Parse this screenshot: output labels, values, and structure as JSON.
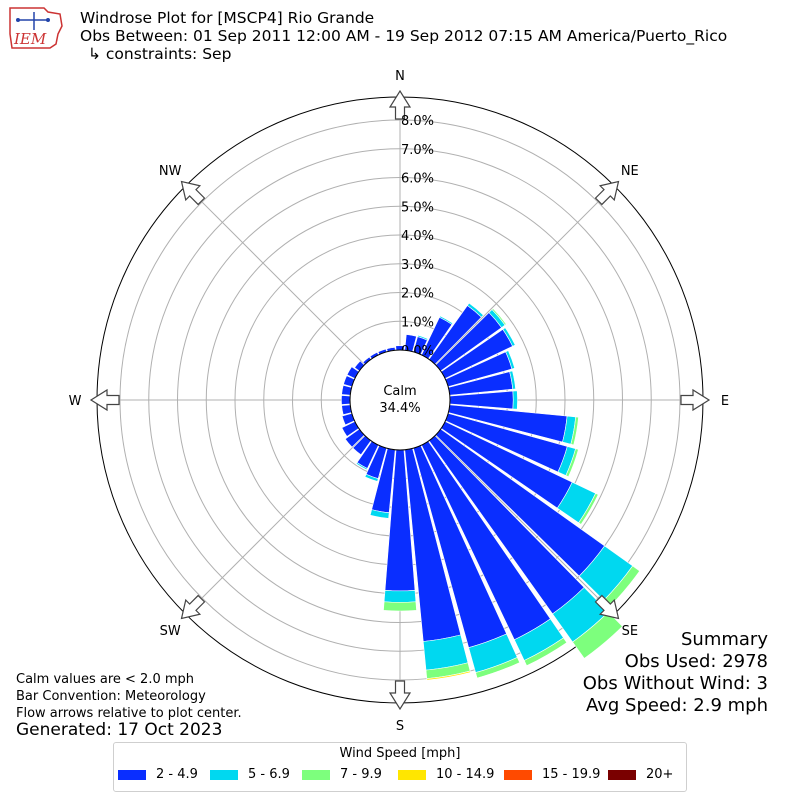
{
  "title": {
    "line1": "Windrose Plot for [MSCP4] Rio Grande",
    "line2": "Obs Between: 01 Sep 2011 12:00 AM - 19 Sep 2012 07:15 AM America/Puerto_Rico",
    "line3": "↳ constraints: Sep"
  },
  "logo": {
    "text": "IEM"
  },
  "summary": {
    "heading": "Summary",
    "obs_used": "Obs Used: 2978",
    "obs_without_wind": "Obs Without Wind: 3",
    "avg_speed": "Avg Speed: 2.9 mph"
  },
  "notes": {
    "calm_values": "Calm values are < 2.0 mph",
    "bar_convention": "Bar Convention: Meteorology",
    "flow_arrows": "Flow arrows relative to plot center.",
    "generated": "Generated: 17 Oct 2023"
  },
  "chart_data": {
    "type": "windrose",
    "calm": {
      "label": "Calm",
      "value": "34.4%"
    },
    "compass_labels": [
      "N",
      "NE",
      "E",
      "SE",
      "S",
      "SW",
      "W",
      "NW"
    ],
    "radial_ticks": [
      "0.0%",
      "1.0%",
      "2.0%",
      "3.0%",
      "4.0%",
      "5.0%",
      "6.0%",
      "7.0%",
      "8.0%"
    ],
    "radial_max": 8.8,
    "colors": [
      "#0a2eff",
      "#00d8f0",
      "#7dff7d",
      "#ffe600",
      "#ff4a00",
      "#7a0000"
    ],
    "legend": {
      "title": "Wind Speed [mph]",
      "bins": [
        "2 - 4.9",
        "5 - 6.9",
        "7 - 9.9",
        "10 - 14.9",
        "15 - 19.9",
        "20+"
      ]
    },
    "direction_step_deg": 10,
    "directions_deg": [
      0,
      10,
      20,
      30,
      40,
      50,
      60,
      70,
      80,
      90,
      100,
      110,
      120,
      130,
      140,
      150,
      160,
      170,
      180,
      190,
      200,
      210,
      220,
      230,
      240,
      250,
      260,
      270,
      280,
      290,
      300,
      310,
      320,
      330,
      340,
      350
    ],
    "series": [
      {
        "name": "2 - 4.9",
        "values": [
          0.15,
          0.55,
          0.55,
          1.45,
          2.3,
          2.6,
          2.6,
          2.3,
          2.2,
          2.2,
          4.1,
          4.3,
          4.9,
          7.0,
          7.4,
          7.5,
          7.2,
          6.7,
          4.9,
          2.2,
          1.1,
          0.9,
          0.6,
          0.6,
          0.5,
          0.35,
          0.3,
          0.3,
          0.3,
          0.3,
          0.3,
          0.2,
          0.1,
          0.1,
          0.1,
          0.1
        ]
      },
      {
        "name": "5 - 6.9",
        "values": [
          0,
          0,
          0.05,
          0.05,
          0.1,
          0.15,
          0.1,
          0.1,
          0.1,
          0.15,
          0.3,
          0.3,
          0.9,
          1.2,
          1.2,
          0.8,
          0.9,
          1.0,
          0.4,
          0.2,
          0.1,
          0.05,
          0,
          0,
          0,
          0,
          0,
          0,
          0,
          0,
          0,
          0,
          0,
          0,
          0,
          0
        ]
      },
      {
        "name": "7 - 9.9",
        "values": [
          0,
          0,
          0,
          0,
          0,
          0.05,
          0,
          0,
          0,
          0,
          0.1,
          0.1,
          0.1,
          0.3,
          0.7,
          0.2,
          0.2,
          0.3,
          0.3,
          0,
          0,
          0,
          0,
          0,
          0,
          0,
          0,
          0,
          0,
          0,
          0,
          0,
          0,
          0,
          0,
          0
        ]
      },
      {
        "name": "10 - 14.9",
        "values": [
          0,
          0,
          0,
          0,
          0,
          0,
          0,
          0,
          0,
          0,
          0,
          0,
          0,
          0,
          0,
          0,
          0.02,
          0.05,
          0,
          0,
          0,
          0,
          0,
          0,
          0,
          0,
          0,
          0,
          0,
          0,
          0,
          0,
          0,
          0,
          0,
          0
        ]
      },
      {
        "name": "15 - 19.9",
        "values": [
          0,
          0,
          0,
          0,
          0,
          0,
          0,
          0,
          0,
          0,
          0,
          0,
          0,
          0,
          0,
          0,
          0,
          0,
          0,
          0,
          0,
          0,
          0,
          0,
          0,
          0,
          0,
          0,
          0,
          0,
          0,
          0,
          0,
          0,
          0,
          0
        ]
      },
      {
        "name": "20+",
        "values": [
          0,
          0,
          0,
          0,
          0,
          0,
          0,
          0,
          0,
          0,
          0,
          0,
          0,
          0,
          0,
          0,
          0,
          0,
          0,
          0,
          0,
          0,
          0,
          0,
          0,
          0,
          0,
          0,
          0,
          0,
          0,
          0,
          0,
          0,
          0,
          0
        ]
      }
    ]
  }
}
